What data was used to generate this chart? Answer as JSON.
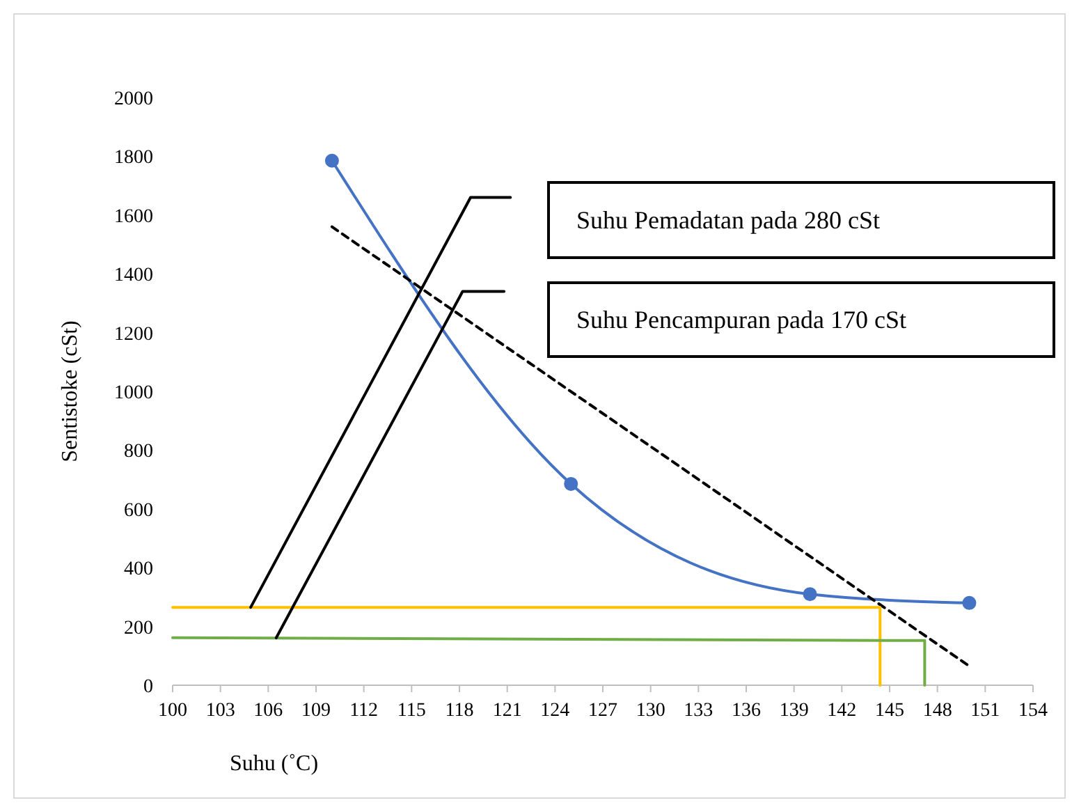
{
  "chart_data": {
    "type": "line",
    "xlabel": "Suhu (˚C)",
    "ylabel": "Sentistoke (cSt)",
    "xlim": [
      100,
      154
    ],
    "xticks": [
      100,
      103,
      106,
      109,
      112,
      115,
      118,
      121,
      124,
      127,
      130,
      133,
      136,
      139,
      142,
      145,
      148,
      151,
      154
    ],
    "ylim": [
      0,
      2000
    ],
    "yticks": [
      0,
      200,
      400,
      600,
      800,
      1000,
      1200,
      1400,
      1600,
      1800,
      2000
    ],
    "grid": false,
    "series": [
      {
        "color": "#4472c4",
        "x": [
          110,
          125,
          140,
          150
        ],
        "values": [
          1785,
          685,
          310,
          280
        ],
        "marker": "circle",
        "line_style": "solid"
      },
      {
        "color": "#000000",
        "x": [
          110,
          150
        ],
        "values": [
          1560,
          65
        ],
        "marker": "none",
        "line_style": "dashed"
      },
      {
        "color": "#ffc000",
        "x": [
          100,
          144.4,
          144.4
        ],
        "values": [
          265,
          265,
          0
        ],
        "marker": "none",
        "line_style": "solid"
      },
      {
        "color": "#70ad47",
        "x": [
          100,
          147.2,
          147.2
        ],
        "values": [
          162,
          152,
          0
        ],
        "marker": "none",
        "line_style": "solid"
      },
      {
        "color": "#000000",
        "x": [
          104.9,
          118.7,
          121.2
        ],
        "values": [
          265,
          1660,
          1660
        ],
        "marker": "none",
        "line_style": "solid"
      },
      {
        "color": "#000000",
        "x": [
          106.5,
          118.2,
          120.8
        ],
        "values": [
          161,
          1340,
          1340
        ],
        "marker": "none",
        "line_style": "solid"
      }
    ],
    "annotations": [
      "Suhu Pemadatan pada 280 cSt",
      "Suhu Pencampuran pada 170 cSt"
    ]
  }
}
